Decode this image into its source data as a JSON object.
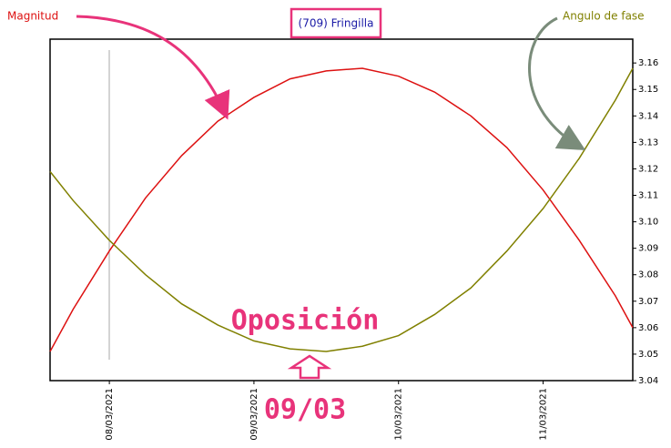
{
  "chart_data": {
    "type": "line",
    "title": "(709) Fringilla",
    "annotations": {
      "opposition": "Oposición",
      "opposition_date": "09/03"
    },
    "x": [
      -0.41,
      -0.25,
      0,
      0.25,
      0.5,
      0.75,
      1,
      1.25,
      1.5,
      1.75,
      2,
      2.25,
      2.5,
      2.75,
      3,
      3.25,
      3.5,
      3.62
    ],
    "xlim": [
      -0.41,
      3.62
    ],
    "xticks": [
      {
        "value": 0,
        "label": "08/03/2021"
      },
      {
        "value": 1,
        "label": "09/03/2021"
      },
      {
        "value": 2,
        "label": "10/03/2021"
      },
      {
        "value": 3,
        "label": "11/03/2021"
      }
    ],
    "ylim": [
      3.04,
      3.169
    ],
    "yticks": [
      3.04,
      3.05,
      3.06,
      3.07,
      3.08,
      3.09,
      {
        "value": 3.1,
        "label": "3.10"
      },
      3.11,
      3.12,
      3.13,
      3.14,
      3.15,
      3.16
    ],
    "series": [
      {
        "name": "Magnitud",
        "color": "#dd1111",
        "values": [
          3.051,
          3.067,
          3.089,
          3.109,
          3.125,
          3.138,
          3.147,
          3.154,
          3.157,
          3.158,
          3.155,
          3.149,
          3.14,
          3.128,
          3.112,
          3.093,
          3.072,
          3.06
        ]
      },
      {
        "name": "Angulo de fase",
        "color": "#808000",
        "values": [
          3.119,
          3.108,
          3.093,
          3.08,
          3.069,
          3.061,
          3.055,
          3.052,
          3.051,
          3.053,
          3.057,
          3.065,
          3.075,
          3.089,
          3.105,
          3.124,
          3.146,
          3.158
        ]
      }
    ]
  }
}
